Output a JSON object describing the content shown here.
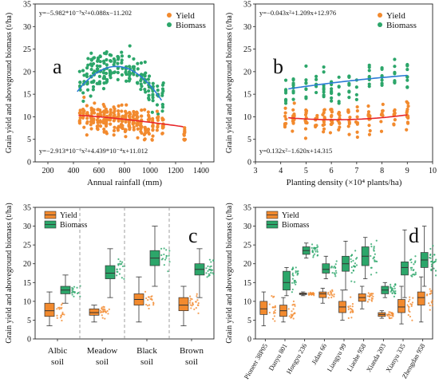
{
  "chart_data": [
    {
      "panel": "a",
      "type": "scatter",
      "xlabel": "Annual rainfall (mm)",
      "ylabel": "Grain yield and aboveground biomass (t/ha)",
      "xlim": [
        100,
        1500
      ],
      "ylim": [
        0,
        35
      ],
      "x_ticks": [
        200,
        400,
        600,
        800,
        1000,
        1200,
        1400
      ],
      "y_ticks": [
        0,
        5,
        10,
        15,
        20,
        25,
        30,
        35
      ],
      "legend": [
        "Yield",
        "Biomass"
      ],
      "legend_position": "top-right",
      "colors": {
        "Yield": "#f28a2e",
        "Biomass": "#2ca66a",
        "yield_fit": "#e8262a",
        "biomass_fit": "#2b7bd6"
      },
      "equations": {
        "biomass": "y=−5.982*10⁻⁵x²+0.088x−11.202",
        "yield": "y=−2.913*10⁻⁶x²+4.439*10⁻⁴x+11.012"
      },
      "series": [
        {
          "name": "Yield",
          "x_range": [
            440,
            1270
          ],
          "mean": 9.5,
          "spread": 3.0
        },
        {
          "name": "Biomass",
          "x_range": [
            450,
            1100
          ],
          "mean": 19.0,
          "spread": 5.0
        }
      ],
      "fits": [
        {
          "series": "Biomass",
          "x": [
            430,
            600,
            750,
            900,
            1100
          ],
          "y": [
            15.8,
            19.8,
            21.2,
            20.0,
            13.5
          ]
        },
        {
          "series": "Yield",
          "x": [
            440,
            700,
            1000,
            1260
          ],
          "y": [
            10.3,
            10.0,
            9.0,
            7.8
          ]
        }
      ]
    },
    {
      "panel": "b",
      "type": "scatter",
      "xlabel": "Planting density (×10⁴ plants/ha)",
      "ylabel": "Grain yield and aboveground biomass (t/ha)",
      "xlim": [
        3,
        10
      ],
      "ylim": [
        0,
        35
      ],
      "x_ticks": [
        3,
        4,
        5,
        6,
        7,
        8,
        9,
        10
      ],
      "y_ticks": [
        0,
        5,
        10,
        15,
        20,
        25,
        30,
        35
      ],
      "legend": [
        "Yield",
        "Biomass"
      ],
      "legend_position": "top-right",
      "colors": {
        "Yield": "#f28a2e",
        "Biomass": "#2ca66a",
        "yield_fit": "#e8262a",
        "biomass_fit": "#2b7bd6"
      },
      "equations": {
        "biomass": "y=−0.043x²+1.209x+12.976",
        "yield": "y=0.132x²−1.620x+14.315"
      },
      "fits": [
        {
          "series": "Biomass",
          "x": [
            4.3,
            6,
            7.5,
            9
          ],
          "y": [
            18.3,
            19.2,
            19.8,
            20.3
          ]
        },
        {
          "series": "Yield",
          "x": [
            4.3,
            5.5,
            6.5,
            9
          ],
          "y": [
            9.8,
            9.4,
            9.4,
            11.5
          ]
        }
      ]
    },
    {
      "panel": "c",
      "type": "box",
      "ylabel": "Grain yield and aboveground biomass (t/ha)",
      "ylim": [
        0,
        35
      ],
      "y_ticks": [
        0,
        5,
        10,
        15,
        20,
        25,
        30,
        35
      ],
      "legend": [
        "Yield",
        "Biomass"
      ],
      "legend_position": "top-left",
      "colors": {
        "Yield": "#f28a2e",
        "Biomass": "#2ca66a"
      },
      "categories": [
        "Albic soil",
        "Meadow soil",
        "Black soil",
        "Brown soil"
      ],
      "series": [
        {
          "name": "Yield",
          "values": [
            {
              "min": 3.5,
              "q1": 6.0,
              "median": 7.5,
              "q3": 9.5,
              "max": 12.5
            },
            {
              "min": 4.5,
              "q1": 6.3,
              "median": 7.0,
              "q3": 8.0,
              "max": 9.0
            },
            {
              "min": 4.5,
              "q1": 9.0,
              "median": 10.5,
              "q3": 12.0,
              "max": 16.5
            },
            {
              "min": 3.5,
              "q1": 7.5,
              "median": 9.0,
              "q3": 11.0,
              "max": 14.0
            }
          ]
        },
        {
          "name": "Biomass",
          "values": [
            {
              "min": 9.5,
              "q1": 12.0,
              "median": 13.0,
              "q3": 14.0,
              "max": 17.0
            },
            {
              "min": 11.0,
              "q1": 16.0,
              "median": 17.5,
              "q3": 19.5,
              "max": 24.0
            },
            {
              "min": 14.0,
              "q1": 19.5,
              "median": 21.5,
              "q3": 23.5,
              "max": 30.0
            },
            {
              "min": 11.0,
              "q1": 17.0,
              "median": 18.5,
              "q3": 20.0,
              "max": 24.0
            }
          ]
        }
      ]
    },
    {
      "panel": "d",
      "type": "box",
      "ylabel": "Grain yield and aboveground biomass (t/ha)",
      "ylim": [
        0,
        35
      ],
      "y_ticks": [
        0,
        5,
        10,
        15,
        20,
        25,
        30,
        35
      ],
      "legend": [
        "Yield",
        "Biomass"
      ],
      "legend_position": "top-left",
      "colors": {
        "Yield": "#f28a2e",
        "Biomass": "#2ca66a"
      },
      "categories": [
        "Pioneer 38P05",
        "Danyu 801",
        "Hongyu 236",
        "Jidan 66",
        "Liangyu 99",
        "Liaohe 958",
        "Xianda 203",
        "Xianyu 335",
        "Zhengdan 958"
      ],
      "series": [
        {
          "name": "Yield",
          "values": [
            {
              "min": 3.5,
              "q1": 6.5,
              "median": 8.0,
              "q3": 10.0,
              "max": 12.5
            },
            {
              "min": 4.5,
              "q1": 6.0,
              "median": 7.5,
              "q3": 9.0,
              "max": 11.0
            },
            {
              "min": 11.5,
              "q1": 11.8,
              "median": 12.0,
              "q3": 12.2,
              "max": 12.5
            },
            {
              "min": 9.5,
              "q1": 11.0,
              "median": 12.0,
              "q3": 12.5,
              "max": 13.5
            },
            {
              "min": 5.0,
              "q1": 7.0,
              "median": 8.5,
              "q3": 10.0,
              "max": 13.0
            },
            {
              "min": 8.0,
              "q1": 10.0,
              "median": 11.0,
              "q3": 12.0,
              "max": 14.0
            },
            {
              "min": 5.5,
              "q1": 6.0,
              "median": 6.5,
              "q3": 7.0,
              "max": 7.5
            },
            {
              "min": 4.0,
              "q1": 7.0,
              "median": 8.5,
              "q3": 10.5,
              "max": 14.0
            },
            {
              "min": 4.5,
              "q1": 9.0,
              "median": 11.0,
              "q3": 12.5,
              "max": 16.5
            }
          ]
        },
        {
          "name": "Biomass",
          "values": [
            {
              "min": null,
              "q1": null,
              "median": null,
              "q3": null,
              "max": null
            },
            {
              "min": 11.5,
              "q1": 13.0,
              "median": 15.0,
              "q3": 18.0,
              "max": 19.0
            },
            {
              "min": 21.5,
              "q1": 22.5,
              "median": 23.5,
              "q3": 24.5,
              "max": 25.5
            },
            {
              "min": 16.0,
              "q1": 17.5,
              "median": 18.5,
              "q3": 20.0,
              "max": 22.0
            },
            {
              "min": 13.0,
              "q1": 18.0,
              "median": 20.0,
              "q3": 22.0,
              "max": 26.0
            },
            {
              "min": 16.0,
              "q1": 19.5,
              "median": 22.0,
              "q3": 24.5,
              "max": 27.0
            },
            {
              "min": 11.0,
              "q1": 12.0,
              "median": 13.0,
              "q3": 14.0,
              "max": 15.0
            },
            {
              "min": 11.0,
              "q1": 17.0,
              "median": 19.0,
              "q3": 20.5,
              "max": 29.0
            },
            {
              "min": 14.0,
              "q1": 19.0,
              "median": 21.0,
              "q3": 23.0,
              "max": 30.0
            }
          ]
        }
      ]
    }
  ]
}
